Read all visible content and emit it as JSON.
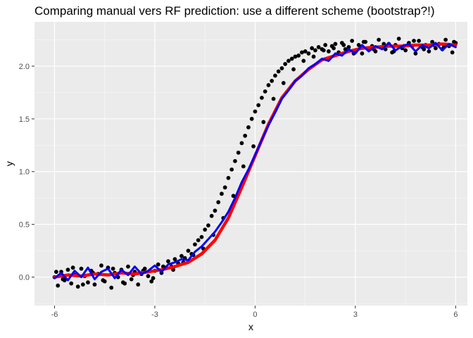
{
  "chart_data": {
    "type": "scatter",
    "title": "Comparing manual vers RF prediction: use a different scheme (bootstrap?!)",
    "xlabel": "x",
    "ylabel": "y",
    "xlim": [
      -6.6,
      6.35
    ],
    "ylim": [
      -0.27,
      2.42
    ],
    "xticks": [
      -6,
      -3,
      0,
      3,
      6
    ],
    "xtick_labels": [
      "-6",
      "-3",
      "0",
      "3",
      "6"
    ],
    "yticks": [
      0.0,
      0.5,
      1.0,
      1.5,
      2.0
    ],
    "ytick_labels": [
      "0.0",
      "0.5",
      "1.0",
      "1.5",
      "2.0"
    ],
    "grid": true,
    "legend": "none",
    "colors": {
      "points": "#000000",
      "manual_line": "#ff0000",
      "rf_line": "#0000ff",
      "panel": "#ebebeb",
      "grid": "#ffffff"
    },
    "series": [
      {
        "kind": "points",
        "x": [
          -6.0,
          -5.9,
          -5.8,
          -5.7,
          -5.6,
          -5.5,
          -5.4,
          -5.3,
          -5.2,
          -5.1,
          -5.0,
          -4.9,
          -4.8,
          -4.7,
          -4.6,
          -4.5,
          -4.4,
          -4.3,
          -4.2,
          -4.1,
          -4.0,
          -3.9,
          -3.8,
          -3.7,
          -3.6,
          -3.5,
          -3.4,
          -3.3,
          -3.2,
          -3.1,
          -3.0,
          -2.9,
          -2.8,
          -2.7,
          -2.6,
          -2.5,
          -2.4,
          -2.3,
          -2.2,
          -2.1,
          -2.0,
          -1.9,
          -1.8,
          -1.7,
          -1.6,
          -1.5,
          -1.4,
          -1.3,
          -1.2,
          -1.1,
          -1.0,
          -0.9,
          -0.8,
          -0.7,
          -0.6,
          -0.5,
          -0.4,
          -0.3,
          -0.2,
          -0.1,
          0.0,
          0.1,
          0.2,
          0.3,
          0.4,
          0.5,
          0.6,
          0.7,
          0.8,
          0.9,
          1.0,
          1.1,
          1.2,
          1.3,
          1.4,
          1.5,
          1.6,
          1.7,
          1.8,
          1.9,
          2.0,
          2.1,
          2.2,
          2.3,
          2.4,
          2.5,
          2.6,
          2.7,
          2.8,
          2.9,
          3.0,
          3.1,
          3.2,
          3.3,
          3.4,
          3.5,
          3.6,
          3.7,
          3.8,
          3.9,
          4.0,
          4.1,
          4.2,
          4.3,
          4.4,
          4.5,
          4.6,
          4.7,
          4.8,
          4.9,
          5.0,
          5.1,
          5.2,
          5.3,
          5.4,
          5.5,
          5.6,
          5.7,
          5.8,
          5.9,
          6.0,
          -5.95,
          -5.75,
          -5.45,
          -5.15,
          -4.85,
          -4.55,
          -4.25,
          -3.95,
          -3.65,
          -3.35,
          -3.05,
          -2.75,
          -2.45,
          -2.15,
          -1.85,
          -1.55,
          -1.25,
          -0.95,
          -0.65,
          -0.35,
          -0.05,
          0.25,
          0.55,
          0.85,
          1.15,
          1.45,
          1.75,
          2.05,
          2.35,
          2.65,
          2.95,
          3.25,
          3.55,
          3.85,
          4.15,
          4.45,
          4.75,
          5.05,
          5.35,
          5.65,
          5.95
        ],
        "y": [
          0.0,
          -0.08,
          0.05,
          -0.03,
          0.07,
          -0.06,
          0.02,
          -0.09,
          0.08,
          0.01,
          -0.05,
          0.06,
          -0.07,
          0.03,
          0.11,
          -0.04,
          0.09,
          -0.1,
          0.04,
          0.0,
          0.07,
          -0.06,
          0.1,
          -0.02,
          0.05,
          -0.07,
          0.03,
          0.08,
          0.01,
          -0.04,
          0.06,
          0.12,
          0.04,
          0.09,
          0.15,
          0.1,
          0.17,
          0.13,
          0.2,
          0.18,
          0.25,
          0.22,
          0.31,
          0.35,
          0.38,
          0.45,
          0.49,
          0.58,
          0.63,
          0.71,
          0.79,
          0.85,
          0.94,
          1.02,
          1.1,
          1.18,
          1.27,
          1.34,
          1.42,
          1.5,
          1.57,
          1.63,
          1.7,
          1.76,
          1.82,
          1.86,
          1.91,
          1.95,
          1.98,
          2.02,
          2.05,
          2.07,
          2.09,
          2.1,
          2.13,
          2.14,
          2.12,
          2.17,
          2.15,
          2.18,
          2.16,
          2.2,
          2.14,
          2.19,
          2.21,
          2.13,
          2.22,
          2.16,
          2.18,
          2.24,
          2.15,
          2.2,
          2.12,
          2.23,
          2.17,
          2.19,
          2.14,
          2.25,
          2.18,
          2.16,
          2.21,
          2.13,
          2.2,
          2.26,
          2.17,
          2.15,
          2.22,
          2.19,
          2.12,
          2.24,
          2.18,
          2.2,
          2.14,
          2.23,
          2.17,
          2.21,
          2.16,
          2.25,
          2.19,
          2.13,
          2.22,
          0.05,
          -0.02,
          0.09,
          -0.07,
          0.04,
          -0.03,
          0.08,
          -0.05,
          0.02,
          0.06,
          -0.01,
          0.1,
          0.07,
          0.14,
          0.21,
          0.27,
          0.4,
          0.56,
          0.77,
          1.05,
          1.24,
          1.47,
          1.69,
          1.84,
          1.97,
          2.05,
          2.09,
          2.15,
          2.17,
          2.2,
          2.12,
          2.23,
          2.16,
          2.21,
          2.14,
          2.19,
          2.24,
          2.16,
          2.2,
          2.18,
          2.23
        ]
      },
      {
        "kind": "line",
        "name": "",
        "x": [
          -6.0,
          -5.6,
          -5.2,
          -4.8,
          -4.4,
          -4.0,
          -3.6,
          -3.2,
          -2.8,
          -2.4,
          -2.0,
          -1.6,
          -1.2,
          -0.8,
          -0.4,
          0.0,
          0.4,
          0.8,
          1.2,
          1.6,
          2.0,
          2.4,
          2.8,
          3.2,
          3.6,
          4.0,
          4.4,
          4.8,
          5.2,
          5.6,
          6.0
        ],
        "y": [
          0.0,
          0.02,
          0.01,
          0.03,
          0.02,
          0.04,
          0.03,
          0.05,
          0.07,
          0.1,
          0.14,
          0.22,
          0.35,
          0.56,
          0.85,
          1.15,
          1.45,
          1.7,
          1.86,
          1.97,
          2.06,
          2.1,
          2.14,
          2.17,
          2.18,
          2.19,
          2.19,
          2.2,
          2.2,
          2.21,
          2.2
        ]
      },
      {
        "kind": "line",
        "name": "",
        "x": [
          -6.0,
          -5.8,
          -5.6,
          -5.4,
          -5.2,
          -5.0,
          -4.8,
          -4.6,
          -4.4,
          -4.2,
          -4.0,
          -3.8,
          -3.6,
          -3.4,
          -3.2,
          -3.0,
          -2.8,
          -2.6,
          -2.4,
          -2.2,
          -2.0,
          -1.8,
          -1.6,
          -1.4,
          -1.2,
          -1.0,
          -0.8,
          -0.6,
          -0.4,
          -0.2,
          0.0,
          0.2,
          0.4,
          0.6,
          0.8,
          1.0,
          1.2,
          1.4,
          1.6,
          1.8,
          2.0,
          2.2,
          2.4,
          2.6,
          2.8,
          3.0,
          3.2,
          3.4,
          3.6,
          3.8,
          4.0,
          4.2,
          4.4,
          4.6,
          4.8,
          5.0,
          5.2,
          5.4,
          5.6,
          5.8,
          6.0
        ],
        "y": [
          -0.01,
          0.04,
          -0.03,
          0.06,
          0.0,
          0.09,
          -0.02,
          0.05,
          0.08,
          -0.01,
          0.07,
          0.02,
          0.1,
          0.03,
          0.06,
          0.11,
          0.05,
          0.12,
          0.14,
          0.17,
          0.16,
          0.24,
          0.29,
          0.36,
          0.43,
          0.52,
          0.62,
          0.75,
          0.9,
          1.02,
          1.16,
          1.3,
          1.44,
          1.56,
          1.69,
          1.77,
          1.86,
          1.91,
          1.98,
          2.02,
          2.07,
          2.05,
          2.12,
          2.1,
          2.16,
          2.12,
          2.2,
          2.14,
          2.19,
          2.16,
          2.22,
          2.15,
          2.19,
          2.21,
          2.14,
          2.2,
          2.17,
          2.22,
          2.15,
          2.21,
          2.18
        ]
      }
    ]
  }
}
